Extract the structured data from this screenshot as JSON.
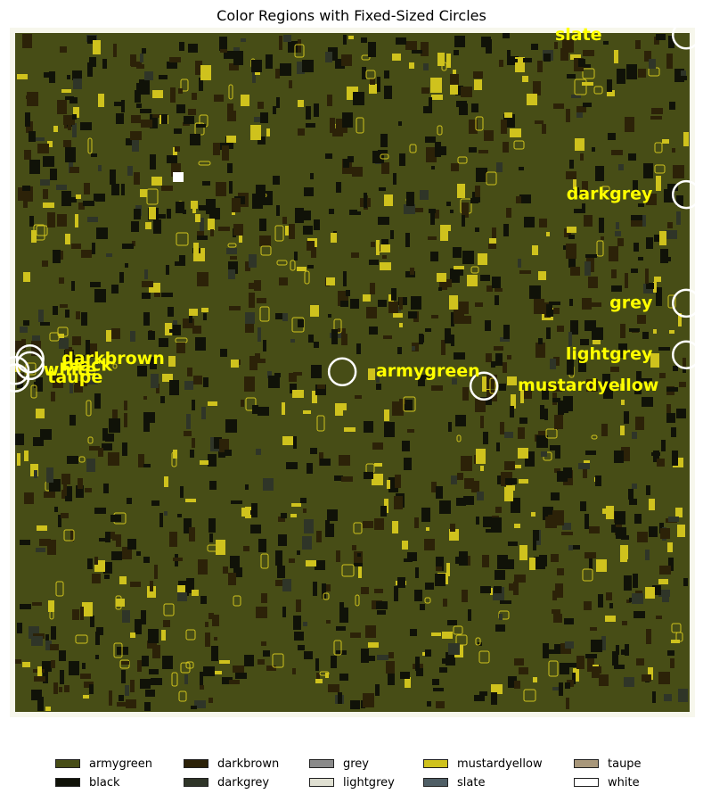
{
  "chart_data": {
    "type": "heatmap",
    "title": "Color Regions with Fixed-Sized Circles",
    "xlabel": "",
    "ylabel": "",
    "grid": false,
    "legend": {
      "placement": "bottom",
      "entries": [
        {
          "name": "armygreen",
          "color": "#474d16"
        },
        {
          "name": "darkbrown",
          "color": "#2c2208"
        },
        {
          "name": "grey",
          "color": "#8a8a8a"
        },
        {
          "name": "mustardyellow",
          "color": "#cfc21d"
        },
        {
          "name": "taupe",
          "color": "#a8977a"
        },
        {
          "name": "black",
          "color": "#101208"
        },
        {
          "name": "darkgrey",
          "color": "#2f3528"
        },
        {
          "name": "lightgrey",
          "color": "#e0e0d2"
        },
        {
          "name": "slate",
          "color": "#505f66"
        },
        {
          "name": "white",
          "color": "#ffffff"
        }
      ]
    },
    "annotations": [
      {
        "label": "slate",
        "circle": [
          0.995,
          0.003
        ],
        "text": [
          0.87,
          0.003
        ],
        "anchor": "end"
      },
      {
        "label": "darkgrey",
        "circle": [
          0.995,
          0.238
        ],
        "text": [
          0.945,
          0.238
        ],
        "anchor": "end"
      },
      {
        "label": "grey",
        "circle": [
          0.995,
          0.398
        ],
        "text": [
          0.945,
          0.398
        ],
        "anchor": "end"
      },
      {
        "label": "lightgrey",
        "circle": [
          0.995,
          0.474
        ],
        "text": [
          0.945,
          0.474
        ],
        "anchor": "end"
      },
      {
        "label": "darkbrown",
        "circle": [
          0.022,
          0.48
        ],
        "text": [
          0.069,
          0.48
        ],
        "anchor": "start"
      },
      {
        "label": "black",
        "circle": [
          0.022,
          0.49
        ],
        "text": [
          0.069,
          0.49
        ],
        "anchor": "start"
      },
      {
        "label": "white",
        "circle": [
          0.0,
          0.497
        ],
        "text": [
          0.042,
          0.497
        ],
        "anchor": "start"
      },
      {
        "label": "taupe",
        "circle": [
          0.0,
          0.508
        ],
        "text": [
          0.048,
          0.508
        ],
        "anchor": "start"
      },
      {
        "label": "armygreen",
        "circle": [
          0.485,
          0.499
        ],
        "text": [
          0.535,
          0.499
        ],
        "anchor": "start"
      },
      {
        "label": "mustardyellow",
        "circle": [
          0.695,
          0.52
        ],
        "text": [
          0.745,
          0.52
        ],
        "anchor": "start"
      }
    ],
    "label_color": "#ffff00",
    "background_color": "#474d16"
  }
}
